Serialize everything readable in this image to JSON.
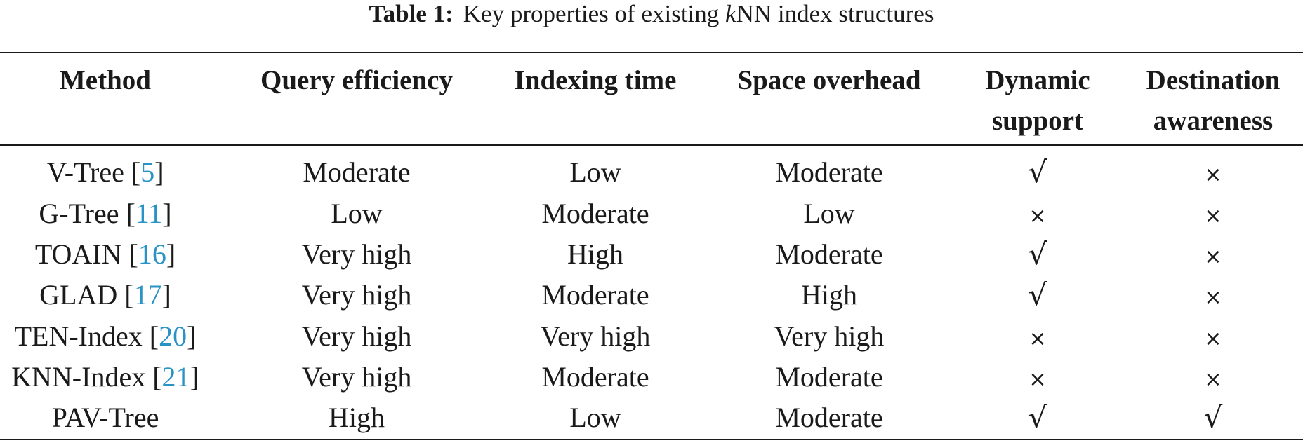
{
  "caption": {
    "label": "Table 1:",
    "text_before": "Key properties of existing ",
    "k": "k",
    "text_after": "NN index structures"
  },
  "headers": [
    {
      "line1": "Method",
      "line2": ""
    },
    {
      "line1": "Query efficiency",
      "line2": ""
    },
    {
      "line1": "Indexing time",
      "line2": ""
    },
    {
      "line1": "Space overhead",
      "line2": ""
    },
    {
      "line1": "Dynamic",
      "line2": "support"
    },
    {
      "line1": "Destination",
      "line2": "awareness"
    }
  ],
  "rows": [
    {
      "method": "V-Tree",
      "ref": "5",
      "query": "Moderate",
      "indexing": "Low",
      "space": "Moderate",
      "dynamic": "√",
      "destination": "×"
    },
    {
      "method": "G-Tree",
      "ref": "11",
      "query": "Low",
      "indexing": "Moderate",
      "space": "Low",
      "dynamic": "×",
      "destination": "×"
    },
    {
      "method": "TOAIN",
      "ref": "16",
      "query": "Very high",
      "indexing": "High",
      "space": "Moderate",
      "dynamic": "√",
      "destination": "×"
    },
    {
      "method": "GLAD",
      "ref": "17",
      "query": "Very high",
      "indexing": "Moderate",
      "space": "High",
      "dynamic": "√",
      "destination": "×"
    },
    {
      "method": "TEN-Index",
      "ref": "20",
      "query": "Very high",
      "indexing": "Very high",
      "space": "Very high",
      "dynamic": "×",
      "destination": "×"
    },
    {
      "method": "KNN-Index",
      "ref": "21",
      "query": "Very high",
      "indexing": "Moderate",
      "space": "Moderate",
      "dynamic": "×",
      "destination": "×"
    },
    {
      "method": "PAV-Tree",
      "ref": "",
      "query": "High",
      "indexing": "Low",
      "space": "Moderate",
      "dynamic": "√",
      "destination": "√"
    }
  ],
  "colors": {
    "citation": "#2a93c6",
    "text": "#1a1a1a"
  }
}
